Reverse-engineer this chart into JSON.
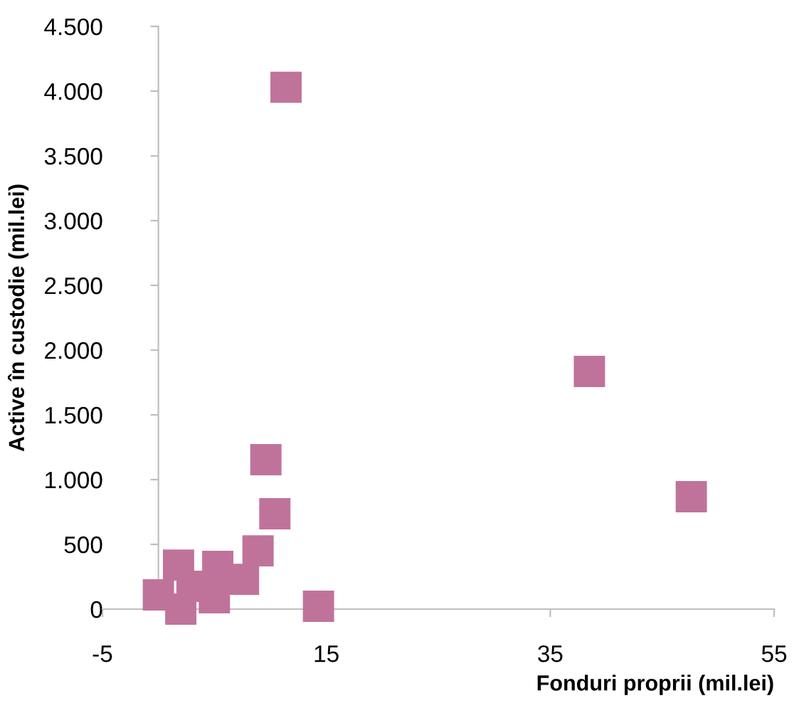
{
  "chart_data": {
    "type": "scatter",
    "xlabel": "Fonduri proprii (mil.lei)",
    "ylabel": "Active în custodie (mil.lei)",
    "x": [
      11.4,
      38.5,
      47.6,
      9.6,
      10.4,
      8.9,
      14.3,
      0.0,
      1.8,
      2.0,
      5.3,
      5.0,
      7.6,
      3.0
    ],
    "values": [
      4030,
      1835,
      868,
      1154,
      736,
      450,
      22,
      110,
      340,
      0,
      330,
      88,
      230,
      176
    ],
    "color": "#c0739a",
    "marker": "square",
    "xlim": [
      -5,
      55
    ],
    "xticks": [
      -5,
      15,
      35,
      55
    ],
    "ylim": [
      0,
      4500
    ],
    "yticks": [
      0,
      {
        "value": 500,
        "label": "500"
      },
      {
        "value": 1000,
        "label": "1.000"
      },
      {
        "value": 1500,
        "label": "1.500"
      },
      {
        "value": 2000,
        "label": "2.000"
      },
      {
        "value": 2500,
        "label": "2.500"
      },
      {
        "value": 3000,
        "label": "3.000"
      },
      {
        "value": 3500,
        "label": "3.500"
      },
      {
        "value": 4000,
        "label": "4.000"
      },
      {
        "value": 4500,
        "label": "4.500"
      }
    ],
    "grid": false
  }
}
